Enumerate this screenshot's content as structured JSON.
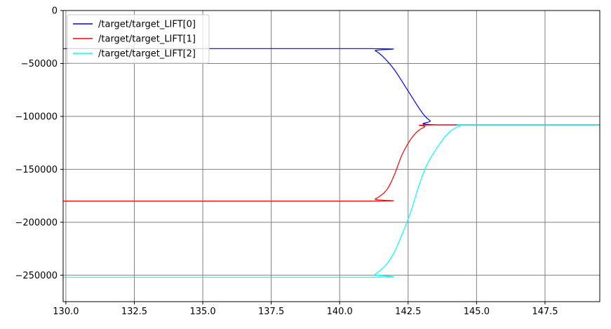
{
  "chart_data": {
    "type": "line",
    "title": "",
    "xlabel": "",
    "ylabel": "",
    "xlim": [
      129.9,
      149.5
    ],
    "ylim": [
      -275000,
      0
    ],
    "xticks": [
      130.0,
      132.5,
      135.0,
      137.5,
      140.0,
      142.5,
      145.0,
      147.5
    ],
    "xtick_labels": [
      "130.0",
      "132.5",
      "135.0",
      "137.5",
      "140.0",
      "142.5",
      "145.0",
      "147.5"
    ],
    "yticks": [
      0,
      -50000,
      -100000,
      -150000,
      -200000,
      -250000
    ],
    "ytick_labels": [
      "0",
      "−50000",
      "−100000",
      "−150000",
      "−200000",
      "−250000"
    ],
    "grid": true,
    "legend": "top-left",
    "series": [
      {
        "name": "/target/target_LIFT[0]",
        "color": "#0000ff",
        "points": [
          [
            129.9,
            -36000
          ],
          [
            141.0,
            -36000
          ],
          [
            141.3,
            -38000
          ],
          [
            141.6,
            -44000
          ],
          [
            142.0,
            -56000
          ],
          [
            142.5,
            -76000
          ],
          [
            143.0,
            -96000
          ],
          [
            143.3,
            -104000
          ],
          [
            143.6,
            -108000
          ],
          [
            149.5,
            -108000
          ]
        ]
      },
      {
        "name": "/target/target_LIFT[1]",
        "color": "#ff0000",
        "points": [
          [
            129.9,
            -180000
          ],
          [
            141.0,
            -180000
          ],
          [
            141.3,
            -178000
          ],
          [
            141.7,
            -170000
          ],
          [
            142.0,
            -155000
          ],
          [
            142.3,
            -135000
          ],
          [
            142.7,
            -118000
          ],
          [
            143.1,
            -110000
          ],
          [
            143.5,
            -108000
          ],
          [
            149.5,
            -108000
          ]
        ]
      },
      {
        "name": "/target/target_LIFT[2]",
        "color": "#00ffff",
        "points": [
          [
            129.9,
            -252000
          ],
          [
            141.0,
            -252000
          ],
          [
            141.3,
            -249000
          ],
          [
            141.7,
            -240000
          ],
          [
            142.0,
            -228000
          ],
          [
            142.3,
            -210000
          ],
          [
            142.6,
            -190000
          ],
          [
            142.9,
            -165000
          ],
          [
            143.2,
            -145000
          ],
          [
            143.6,
            -128000
          ],
          [
            144.0,
            -115000
          ],
          [
            144.4,
            -109000
          ],
          [
            144.8,
            -108000
          ],
          [
            149.5,
            -108000
          ]
        ]
      }
    ]
  },
  "colors": {
    "grid": "#808080",
    "axes": "#000000",
    "background": "#ffffff"
  }
}
